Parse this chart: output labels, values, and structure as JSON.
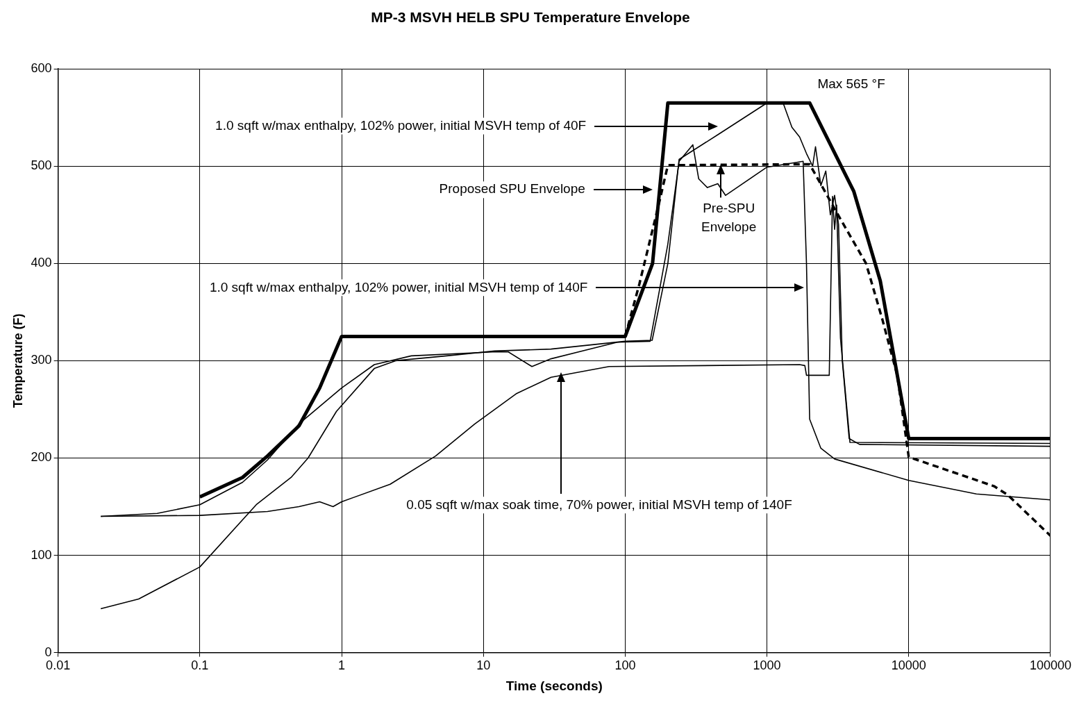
{
  "chart_data": {
    "type": "line",
    "title": "MP-3 MSVH HELB SPU Temperature Envelope",
    "xlabel": "Time (seconds)",
    "ylabel": "Temperature (F)",
    "log": "x",
    "grid": true,
    "legend": false,
    "marker": "none",
    "xlim": [
      0.01,
      100000
    ],
    "xticks": [
      0.01,
      0.1,
      1,
      10,
      100,
      1000,
      10000,
      100000
    ],
    "ylim": [
      0,
      600
    ],
    "yticks": [
      0,
      100,
      200,
      300,
      400,
      500,
      600
    ],
    "series": [
      {
        "color": "#000000",
        "x": [
          0.1,
          0.2,
          0.3,
          0.5,
          0.7,
          1,
          100,
          156,
          175,
          200,
          2000,
          4100,
          6300,
          10000,
          100000
        ],
        "values": [
          160,
          180,
          202,
          233,
          272,
          325,
          325,
          400,
          476,
          565,
          565,
          474,
          382,
          220,
          220
        ]
      },
      {
        "color": "#000000",
        "line_style": "dashed",
        "x": [
          100,
          126,
          174,
          200,
          1800,
          2000,
          3200,
          5000,
          6500,
          8300,
          10000,
          40000,
          50000,
          100000
        ],
        "values": [
          325,
          379,
          463,
          501,
          502,
          502,
          449,
          400,
          343,
          285,
          201,
          171,
          162,
          120
        ]
      },
      {
        "color": "#000000",
        "x": [
          0.02,
          0.037,
          0.1,
          0.25,
          0.44,
          0.58,
          0.92,
          1.7,
          2.4,
          5.5,
          12,
          30,
          100,
          155,
          200,
          240,
          458,
          1000,
          1300,
          1500,
          1700,
          1900,
          2100,
          2200,
          2400,
          2600,
          2800,
          3000,
          3200,
          3400,
          3800,
          4500,
          100000
        ],
        "values": [
          45,
          55,
          88,
          152,
          180,
          200,
          248,
          292,
          300,
          305,
          310,
          312,
          320,
          321,
          400,
          507,
          533,
          565,
          565,
          540,
          530,
          513,
          500,
          520,
          480,
          495,
          450,
          470,
          440,
          300,
          220,
          214,
          212
        ]
      },
      {
        "color": "#000000",
        "x": [
          0.02,
          0.05,
          0.1,
          0.2,
          0.3,
          0.5,
          1,
          1.7,
          3.1,
          11.6,
          15,
          22,
          30,
          88,
          150,
          200,
          240,
          300,
          330,
          380,
          450,
          510,
          1000,
          1800,
          1900,
          2000,
          2400,
          3000,
          10000,
          30000,
          100000
        ],
        "values": [
          140,
          143,
          152,
          175,
          198,
          235,
          272,
          296,
          305,
          309,
          309,
          294,
          302,
          319,
          320,
          420,
          505,
          522,
          487,
          478,
          482,
          470,
          499,
          505,
          400,
          240,
          210,
          199,
          177,
          163,
          157
        ]
      },
      {
        "color": "#000000",
        "x": [
          0.02,
          0.1,
          0.3,
          0.5,
          0.7,
          0.87,
          1,
          2.2,
          4.6,
          8.7,
          17,
          30,
          77,
          1700,
          1850,
          1900,
          2750,
          2900,
          3000,
          3100,
          3300,
          3850,
          100000
        ],
        "values": [
          140,
          141,
          145,
          150,
          155,
          150,
          155,
          173,
          202,
          235,
          266,
          283,
          294,
          296,
          295,
          285,
          285,
          469,
          435,
          460,
          323,
          216,
          215
        ]
      }
    ],
    "annotations": [
      "1.0 sqft w/max enthalpy, 102% power, initial MSVH temp of 40F",
      "Proposed SPU Envelope",
      {
        "text": "Pre-SPU Envelope",
        "x": 470,
        "y": 502
      },
      "1.0 sqft w/max enthalpy, 102% power, initial MSVH temp of 140F",
      "0.05 sqft w/max soak time, 70% power, initial MSVH temp of 140F",
      {
        "text": "Max 565 °F",
        "x": 2000,
        "y": 565
      }
    ]
  }
}
